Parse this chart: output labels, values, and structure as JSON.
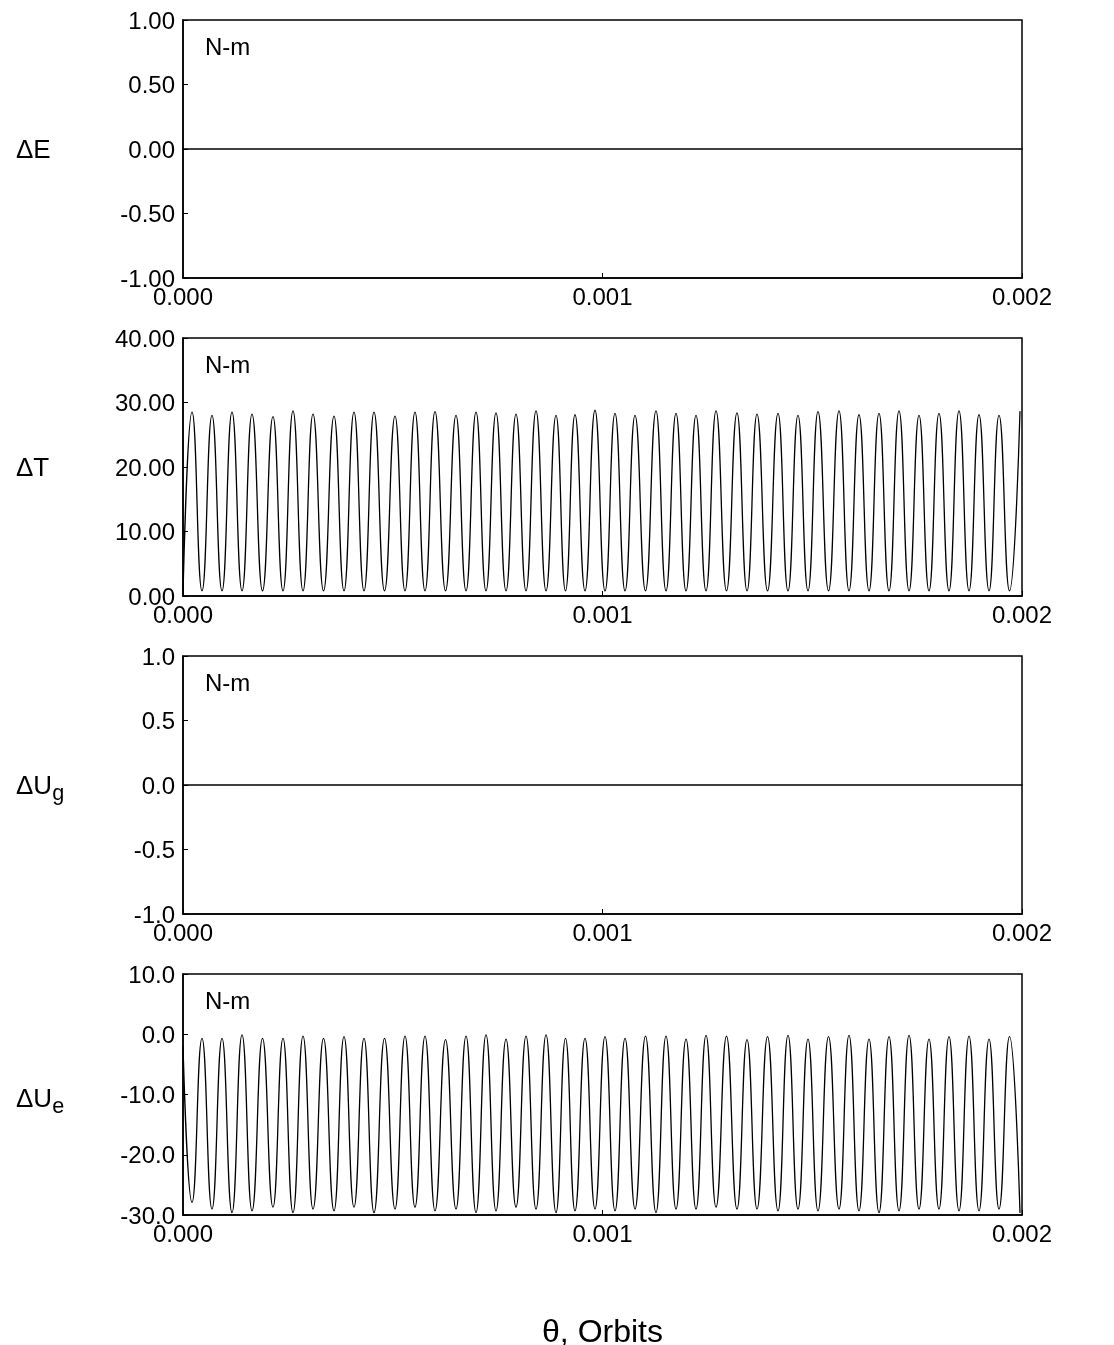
{
  "chart_data": [
    {
      "type": "line",
      "ylabel": "ΔE",
      "annotations": [
        "N-m"
      ],
      "xlim": [
        0,
        0.002
      ],
      "xticks": [
        {
          "value": 0,
          "label": "0.000"
        },
        {
          "value": 0.001,
          "label": "0.001"
        },
        {
          "value": 0.002,
          "label": "0.002"
        }
      ],
      "ylim": [
        -1,
        1
      ],
      "yticks": [
        {
          "value": -1,
          "label": "-1.00"
        },
        {
          "value": -0.5,
          "label": "-0.50"
        },
        {
          "value": 0,
          "label": "0.00"
        },
        {
          "value": 0.5,
          "label": "0.50"
        },
        {
          "value": 1,
          "label": "1.00"
        }
      ],
      "marker": "none",
      "line_style": "solid",
      "series": [
        {
          "color": "#000000",
          "x": [
            0,
            0.002
          ],
          "values": [
            0,
            0
          ]
        }
      ]
    },
    {
      "type": "line",
      "ylabel": "ΔT",
      "annotations": [
        "N-m"
      ],
      "xlim": [
        0,
        0.002
      ],
      "xticks": [
        {
          "value": 0,
          "label": "0.000"
        },
        {
          "value": 0.001,
          "label": "0.001"
        },
        {
          "value": 0.002,
          "label": "0.002"
        }
      ],
      "ylim": [
        0,
        40
      ],
      "yticks": [
        {
          "value": 0,
          "label": "0.00"
        },
        {
          "value": 10,
          "label": "10.00"
        },
        {
          "value": 20,
          "label": "20.00"
        },
        {
          "value": 30,
          "label": "30.00"
        },
        {
          "value": 40,
          "label": "40.00"
        }
      ],
      "marker": "none",
      "line_style": "solid",
      "series": [
        {
          "color": "#000000",
          "x": [
            0,
            2.15e-05,
            4.53e-05,
            6.91e-05,
            9.3e-05,
            0.0001168,
            0.0001407,
            0.0001645,
            0.0001895,
            0.0002145,
            0.0002384,
            0.0002622,
            0.0002861,
            0.0003099,
            0.000335,
            0.00036,
            0.0003838,
            0.0004076,
            0.0004315,
            0.0004553,
            0.0004804,
            0.0005054,
            0.0005292,
            0.000553,
            0.0005769,
            0.0006007,
            0.0006258,
            0.0006508,
            0.0006747,
            0.0006985,
            0.0007223,
            0.0007461,
            0.00077,
            0.0007938,
            0.0008177,
            0.0008415,
            0.0008654,
            0.0008892,
            0.0009118,
            0.0009344,
            0.0009583,
            0.0009821,
            0.001006,
            0.0010298,
            0.0010537,
            0.0010775,
            0.0011025,
            0.0011275,
            0.0011514,
            0.0011752,
            0.0011991,
            0.0012229,
            0.0012468,
            0.0012706,
            0.0012956,
            0.0013206,
            0.0013445,
            0.0013683,
            0.0013934,
            0.0014184,
            0.0014422,
            0.001466,
            0.0014899,
            0.0015137,
            0.0015388,
            0.0015638,
            0.0015876,
            0.0016114,
            0.0016353,
            0.0016591,
            0.001683,
            0.0017068,
            0.0017307,
            0.0017545,
            0.0017783,
            0.0018021,
            0.001826,
            0.0018498,
            0.0018737,
            0.0018975,
            0.0019214,
            0.0019452,
            0.0019702,
            0.0019952
          ],
          "values": [
            0.5,
            28.5,
            0.8,
            28.0,
            0.8,
            28.5,
            0.8,
            28.2,
            0.8,
            27.8,
            0.8,
            28.7,
            0.8,
            28.2,
            0.8,
            27.9,
            0.8,
            28.5,
            0.8,
            28.5,
            0.8,
            27.9,
            0.8,
            28.5,
            0.8,
            28.6,
            0.8,
            28.0,
            0.8,
            28.5,
            0.8,
            28.4,
            0.8,
            28.2,
            0.8,
            28.7,
            0.8,
            28.0,
            0.8,
            28.1,
            0.8,
            28.8,
            0.8,
            28.3,
            0.8,
            28.0,
            0.8,
            28.7,
            0.8,
            28.3,
            0.8,
            28.0,
            0.8,
            28.7,
            0.8,
            28.4,
            0.8,
            28.2,
            0.8,
            28.3,
            0.8,
            28.0,
            0.8,
            28.6,
            0.8,
            28.7,
            0.8,
            28.1,
            0.8,
            28.3,
            0.8,
            28.7,
            0.8,
            28.0,
            0.8,
            28.3,
            0.8,
            28.7,
            0.8,
            28.1,
            0.8,
            28.0,
            0.8,
            28.6
          ]
        }
      ]
    },
    {
      "type": "line",
      "ylabel": "ΔU$_{g}$",
      "annotations": [
        "N-m"
      ],
      "xlim": [
        0,
        0.002
      ],
      "xticks": [
        {
          "value": 0,
          "label": "0.000"
        },
        {
          "value": 0.001,
          "label": "0.001"
        },
        {
          "value": 0.002,
          "label": "0.002"
        }
      ],
      "ylim": [
        -1,
        1
      ],
      "yticks": [
        {
          "value": -1,
          "label": "-1.0"
        },
        {
          "value": -0.5,
          "label": "-0.5"
        },
        {
          "value": 0,
          "label": "0.0"
        },
        {
          "value": 0.5,
          "label": "0.5"
        },
        {
          "value": 1,
          "label": "1.0"
        }
      ],
      "marker": "none",
      "line_style": "solid",
      "series": [
        {
          "color": "#000000",
          "x": [
            0,
            0.002
          ],
          "values": [
            0,
            0
          ]
        }
      ]
    },
    {
      "type": "line",
      "ylabel": "ΔU$_{e}$",
      "xlabel": "θ, Orbits",
      "annotations": [
        "N-m"
      ],
      "xlim": [
        0,
        0.002
      ],
      "xticks": [
        {
          "value": 0,
          "label": "0.000"
        },
        {
          "value": 0.001,
          "label": "0.001"
        },
        {
          "value": 0.002,
          "label": "0.002"
        }
      ],
      "ylim": [
        -30,
        10
      ],
      "yticks": [
        {
          "value": -30,
          "label": "-30.0"
        },
        {
          "value": -20,
          "label": "-20.0"
        },
        {
          "value": -10,
          "label": "-10.0"
        },
        {
          "value": 0,
          "label": "0.0"
        },
        {
          "value": 10,
          "label": "10.0"
        }
      ],
      "marker": "none",
      "line_style": "solid",
      "series": [
        {
          "color": "#000000",
          "x": [
            0,
            2.15e-05,
            4.53e-05,
            6.91e-05,
            9.3e-05,
            0.0001168,
            0.0001407,
            0.0001645,
            0.0001895,
            0.0002145,
            0.0002384,
            0.0002622,
            0.0002861,
            0.0003099,
            0.000335,
            0.00036,
            0.0003838,
            0.0004076,
            0.0004315,
            0.0004553,
            0.0004804,
            0.0005054,
            0.0005292,
            0.000553,
            0.0005769,
            0.0006007,
            0.0006258,
            0.0006508,
            0.0006747,
            0.0006985,
            0.0007223,
            0.0007461,
            0.00077,
            0.0007938,
            0.0008177,
            0.0008415,
            0.0008654,
            0.0008892,
            0.0009118,
            0.0009344,
            0.0009583,
            0.0009821,
            0.001006,
            0.0010298,
            0.0010537,
            0.0010775,
            0.0011025,
            0.0011275,
            0.0011514,
            0.0011752,
            0.0011991,
            0.0012229,
            0.0012468,
            0.0012706,
            0.0012956,
            0.0013206,
            0.0013445,
            0.0013683,
            0.0013934,
            0.0014184,
            0.0014422,
            0.001466,
            0.0014899,
            0.0015137,
            0.0015388,
            0.0015638,
            0.0015876,
            0.0016114,
            0.0016353,
            0.0016591,
            0.001683,
            0.0017068,
            0.0017307,
            0.0017545,
            0.0017783,
            0.0018021,
            0.001826,
            0.0018498,
            0.0018737,
            0.0018975,
            0.0019214,
            0.0019452,
            0.0019702,
            0.0019952
          ],
          "values": [
            -2.1,
            -27.9,
            -0.7,
            -29.0,
            -0.7,
            -29.6,
            -0.1,
            -29.3,
            -0.7,
            -28.7,
            -0.7,
            -29.6,
            -0.3,
            -29.0,
            -0.7,
            -29.3,
            -0.4,
            -28.7,
            -0.7,
            -29.6,
            -0.7,
            -29.0,
            -0.3,
            -28.7,
            -0.3,
            -29.3,
            -0.9,
            -29.0,
            -0.3,
            -29.6,
            -0.1,
            -29.3,
            -0.8,
            -28.7,
            -0.3,
            -29.0,
            -0.1,
            -29.6,
            -0.7,
            -29.3,
            -0.7,
            -29.0,
            -0.4,
            -29.3,
            -0.7,
            -29.0,
            -0.3,
            -29.6,
            -0.3,
            -29.0,
            -0.8,
            -29.0,
            -0.2,
            -28.7,
            -0.3,
            -29.0,
            -0.9,
            -29.0,
            -0.4,
            -29.3,
            -0.2,
            -29.0,
            -0.8,
            -29.3,
            -0.4,
            -29.0,
            -0.2,
            -29.3,
            -0.8,
            -29.6,
            -0.4,
            -29.3,
            -0.2,
            -29.0,
            -0.8,
            -29.0,
            -0.4,
            -29.3,
            -0.3,
            -29.3,
            -0.8,
            -29.0,
            -0.4,
            -29.6
          ]
        }
      ]
    }
  ]
}
